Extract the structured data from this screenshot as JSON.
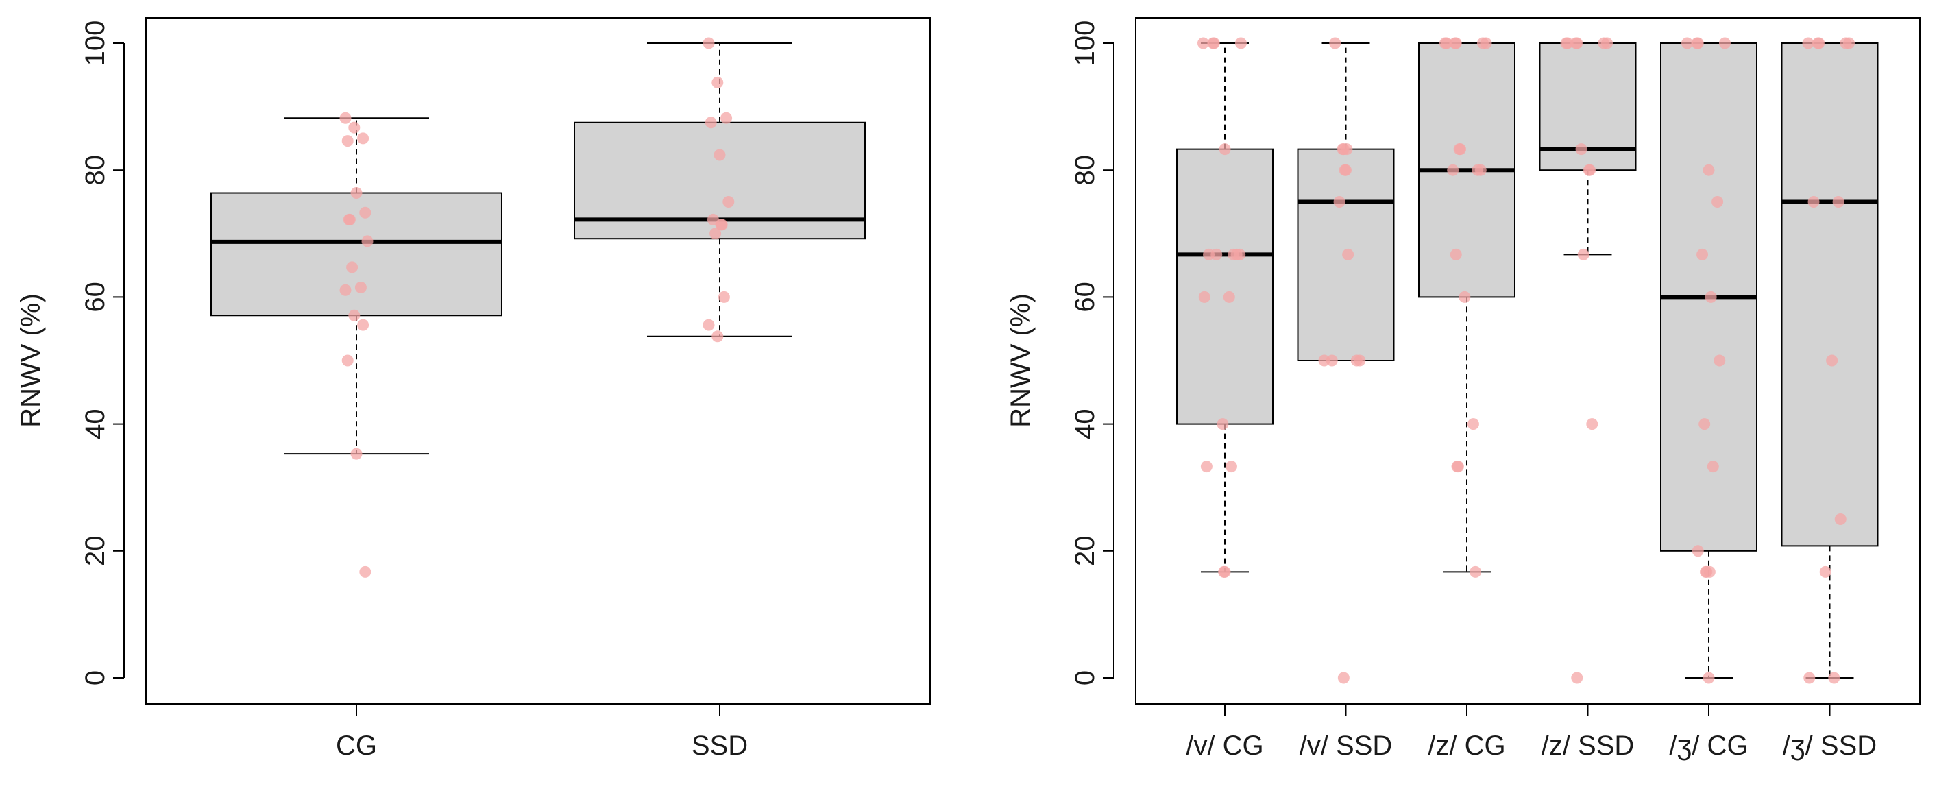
{
  "chart_data": [
    {
      "type": "boxplot",
      "ylabel": "RNWV (%)",
      "ylim": [
        0,
        100
      ],
      "yticks": [
        0,
        20,
        40,
        60,
        80,
        100
      ],
      "colors": {
        "box_fill": "#d3d3d3",
        "point": "#f4a6a6",
        "line": "#000000"
      },
      "groups": [
        {
          "label": "CG",
          "whisker_low": 35.3,
          "q1": 57.1,
          "median": 68.7,
          "q3": 76.4,
          "whisker_high": 88.2,
          "points": [
            88.2,
            86.7,
            85.0,
            84.6,
            76.4,
            73.3,
            72.2,
            72.2,
            68.8,
            64.7,
            61.5,
            61.1,
            57.1,
            55.6,
            50.0,
            35.3,
            16.7
          ]
        },
        {
          "label": "SSD",
          "whisker_low": 53.8,
          "q1": 69.2,
          "median": 72.2,
          "q3": 87.5,
          "whisker_high": 100,
          "points": [
            100,
            93.8,
            88.2,
            87.5,
            82.4,
            75.0,
            72.2,
            71.4,
            71.4,
            70.0,
            60.0,
            55.6,
            53.8
          ]
        }
      ]
    },
    {
      "type": "boxplot",
      "ylabel": "RNWV (%)",
      "ylim": [
        0,
        100
      ],
      "yticks": [
        0,
        20,
        40,
        60,
        80,
        100
      ],
      "colors": {
        "box_fill": "#d3d3d3",
        "point": "#f4a6a6",
        "line": "#000000"
      },
      "groups": [
        {
          "label": "/v/ CG",
          "whisker_low": 16.7,
          "q1": 40.0,
          "median": 66.7,
          "q3": 83.3,
          "whisker_high": 100,
          "points": [
            100,
            100,
            100,
            100,
            83.3,
            66.7,
            66.7,
            66.7,
            66.7,
            66.7,
            60,
            60,
            40,
            33.3,
            33.3,
            16.7,
            16.7
          ]
        },
        {
          "label": "/v/ SSD",
          "whisker_low": 50.0,
          "q1": 50.0,
          "median": 75.0,
          "q3": 83.3,
          "whisker_high": 100,
          "points": [
            100,
            83.3,
            83.3,
            83.3,
            80,
            80,
            75,
            66.7,
            50,
            50,
            50,
            50,
            0
          ]
        },
        {
          "label": "/z/ CG",
          "whisker_low": 16.7,
          "q1": 60.0,
          "median": 80.0,
          "q3": 100,
          "whisker_high": 100,
          "points": [
            100,
            100,
            100,
            100,
            100,
            100,
            83.3,
            83.3,
            80,
            80,
            80,
            66.7,
            60,
            40,
            33.3,
            33.3,
            16.7
          ]
        },
        {
          "label": "/z/ SSD",
          "whisker_low": 66.7,
          "q1": 80.0,
          "median": 83.3,
          "q3": 100,
          "whisker_high": 100,
          "points": [
            100,
            100,
            100,
            100,
            100,
            100,
            83.3,
            80,
            80,
            66.7,
            40,
            0
          ]
        },
        {
          "label": "/ʒ/ CG",
          "whisker_low": 0,
          "q1": 20.0,
          "median": 60.0,
          "q3": 100,
          "whisker_high": 100,
          "points": [
            100,
            100,
            100,
            100,
            80,
            75,
            66.7,
            60,
            50,
            40,
            33.3,
            20,
            16.7,
            16.7,
            16.7,
            0
          ]
        },
        {
          "label": "/ʒ/ SSD",
          "whisker_low": 0,
          "q1": 20.8,
          "median": 75.0,
          "q3": 100,
          "whisker_high": 100,
          "points": [
            100,
            100,
            100,
            100,
            100,
            75,
            75,
            50,
            25,
            16.7,
            0,
            0
          ]
        }
      ]
    }
  ]
}
